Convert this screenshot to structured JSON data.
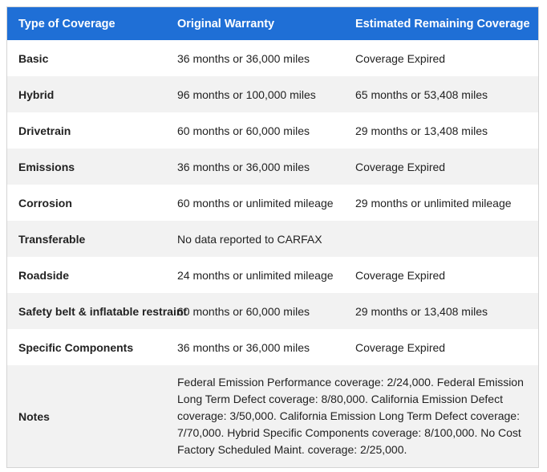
{
  "table": {
    "headers": [
      "Type of Coverage",
      "Original Warranty",
      "Estimated Remaining Coverage"
    ],
    "rows": [
      {
        "type": "Basic",
        "original": "36 months or 36,000 miles",
        "remaining": "Coverage Expired"
      },
      {
        "type": "Hybrid",
        "original": "96 months or 100,000 miles",
        "remaining": "65 months or 53,408 miles"
      },
      {
        "type": "Drivetrain",
        "original": "60 months or 60,000 miles",
        "remaining": "29 months or 13,408 miles"
      },
      {
        "type": "Emissions",
        "original": "36 months or 36,000 miles",
        "remaining": "Coverage Expired"
      },
      {
        "type": "Corrosion",
        "original": "60 months or unlimited mileage",
        "remaining": "29 months or unlimited mileage"
      },
      {
        "type": "Transferable",
        "original": "No data reported to CARFAX",
        "remaining": ""
      },
      {
        "type": "Roadside",
        "original": "24 months or unlimited mileage",
        "remaining": "Coverage Expired"
      },
      {
        "type": "Safety belt & inflatable restraint",
        "original": "60 months or 60,000 miles",
        "remaining": "29 months or 13,408 miles"
      },
      {
        "type": "Specific Components",
        "original": "36 months or 36,000 miles",
        "remaining": "Coverage Expired"
      }
    ],
    "notes": {
      "label": "Notes",
      "text": "Federal Emission Performance coverage: 2/24,000. Federal Emission Long Term Defect coverage: 8/80,000. California Emission Defect coverage: 3/50,000. California Emission Long Term Defect coverage: 7/70,000. Hybrid Specific Components coverage: 8/100,000. No Cost Factory Scheduled Maint. coverage: 2/25,000."
    }
  },
  "colors": {
    "header_bg": "#1f6fd6",
    "header_text": "#ffffff",
    "alt_row_bg": "#f2f2f2"
  }
}
